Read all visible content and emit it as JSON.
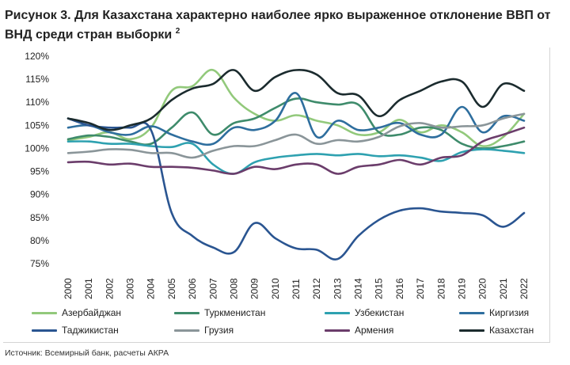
{
  "title_main": "Рисунок 3. Для Казахстана характерно наиболее ярко выраженное отклонение ВВП от ВНД среди стран выборки",
  "title_sup": "2",
  "source": "Источник: Всемирный банк, расчеты АКРА",
  "chart_data": {
    "type": "line",
    "categories": [
      "2000",
      "2001",
      "2002",
      "2003",
      "2004",
      "2005",
      "2006",
      "2007",
      "2008",
      "2009",
      "2010",
      "2011",
      "2012",
      "2013",
      "2014",
      "2015",
      "2016",
      "2017",
      "2018",
      "2019",
      "2020",
      "2021",
      "2022"
    ],
    "y_ticks": [
      "75%",
      "80%",
      "85%",
      "90%",
      "95%",
      "100%",
      "105%",
      "110%",
      "115%",
      "120%"
    ],
    "ylim": [
      75,
      120
    ],
    "grid": false,
    "legend_position": "bottom",
    "series": [
      {
        "name": "Азербайджан",
        "color": "#92c97b",
        "values": [
          101.8,
          102.5,
          103.5,
          102.0,
          104.5,
          112.5,
          113.5,
          117.0,
          111.0,
          107.5,
          106.0,
          107.2,
          106.0,
          105.0,
          103.0,
          103.5,
          106.2,
          103.5,
          105.0,
          103.5,
          100.5,
          102.5,
          107.5
        ]
      },
      {
        "name": "Туркменистан",
        "color": "#3e8b6b",
        "values": [
          102.0,
          102.8,
          102.5,
          101.5,
          101.0,
          104.5,
          107.8,
          103.0,
          105.5,
          106.5,
          108.8,
          110.8,
          110.0,
          109.5,
          109.5,
          103.5,
          103.0,
          104.5,
          104.0,
          101.0,
          100.0,
          100.5,
          101.5
        ]
      },
      {
        "name": "Узбекистан",
        "color": "#2ea1b0",
        "values": [
          101.5,
          101.5,
          101.0,
          101.0,
          100.5,
          100.3,
          101.0,
          96.5,
          94.5,
          97.0,
          98.0,
          98.5,
          98.8,
          98.5,
          98.8,
          98.3,
          98.5,
          98.0,
          97.3,
          99.2,
          99.8,
          99.5,
          99.0
        ]
      },
      {
        "name": "Киргизия",
        "color": "#2e6e9e",
        "values": [
          104.5,
          105.0,
          103.5,
          103.0,
          104.8,
          103.0,
          101.5,
          101.0,
          104.5,
          104.0,
          106.0,
          112.0,
          102.5,
          106.0,
          104.0,
          104.5,
          105.5,
          103.0,
          103.0,
          109.0,
          103.5,
          107.0,
          106.0
        ]
      },
      {
        "name": "Таджикистан",
        "color": "#2a5591",
        "values": [
          106.5,
          105.0,
          104.5,
          104.5,
          104.0,
          86.0,
          81.0,
          78.5,
          77.5,
          83.8,
          80.5,
          78.3,
          78.0,
          76.0,
          81.0,
          84.5,
          86.5,
          87.0,
          86.3,
          86.0,
          85.5,
          83.0,
          86.0
        ]
      },
      {
        "name": "Грузия",
        "color": "#8a9599",
        "values": [
          99.0,
          99.3,
          99.8,
          99.7,
          99.0,
          99.0,
          98.0,
          99.5,
          100.5,
          100.5,
          101.8,
          103.0,
          101.0,
          101.8,
          101.5,
          102.5,
          104.8,
          105.5,
          104.5,
          104.8,
          105.0,
          106.5,
          107.5
        ]
      },
      {
        "name": "Армения",
        "color": "#6b3d6b",
        "values": [
          97.0,
          97.1,
          96.5,
          96.7,
          96.0,
          96.0,
          95.8,
          95.2,
          94.5,
          96.0,
          95.5,
          96.5,
          96.5,
          94.5,
          96.0,
          96.5,
          97.5,
          96.5,
          98.0,
          98.5,
          101.5,
          103.0,
          104.5
        ]
      },
      {
        "name": "Казахстан",
        "color": "#1b2b2e",
        "values": [
          106.5,
          105.5,
          104.0,
          105.0,
          106.5,
          110.5,
          113.0,
          114.0,
          117.0,
          112.5,
          115.5,
          117.0,
          116.0,
          112.0,
          111.5,
          107.0,
          110.5,
          112.5,
          114.5,
          114.5,
          109.0,
          114.0,
          112.5
        ]
      }
    ]
  }
}
